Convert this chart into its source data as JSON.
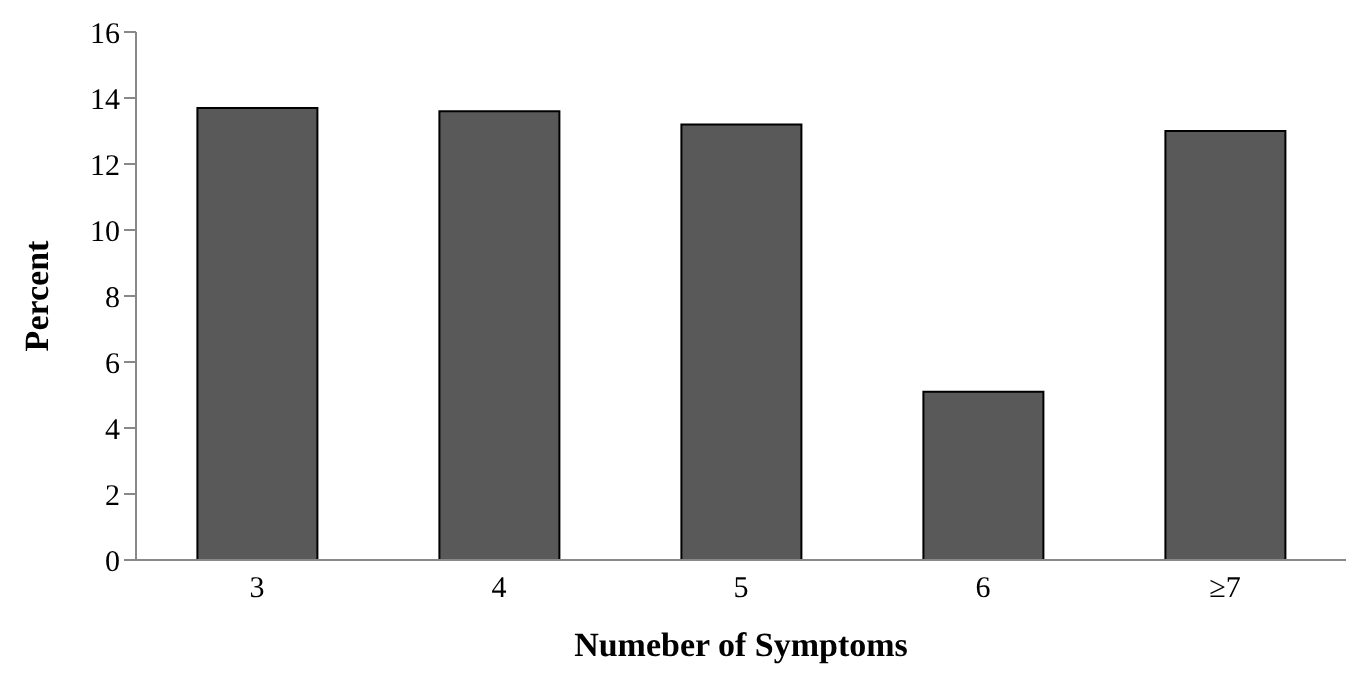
{
  "chart_data": {
    "type": "bar",
    "xlabel": "Numeber of Symptoms",
    "ylabel": "Percent",
    "categories": [
      "3",
      "4",
      "5",
      "6",
      "≥7"
    ],
    "values": [
      13.7,
      13.6,
      13.2,
      5.1,
      13.0
    ],
    "color": "#595959",
    "ylim": [
      0,
      16
    ],
    "yticks": [
      0,
      2,
      4,
      6,
      8,
      10,
      12,
      14,
      16
    ],
    "grid": false,
    "legend": false
  }
}
